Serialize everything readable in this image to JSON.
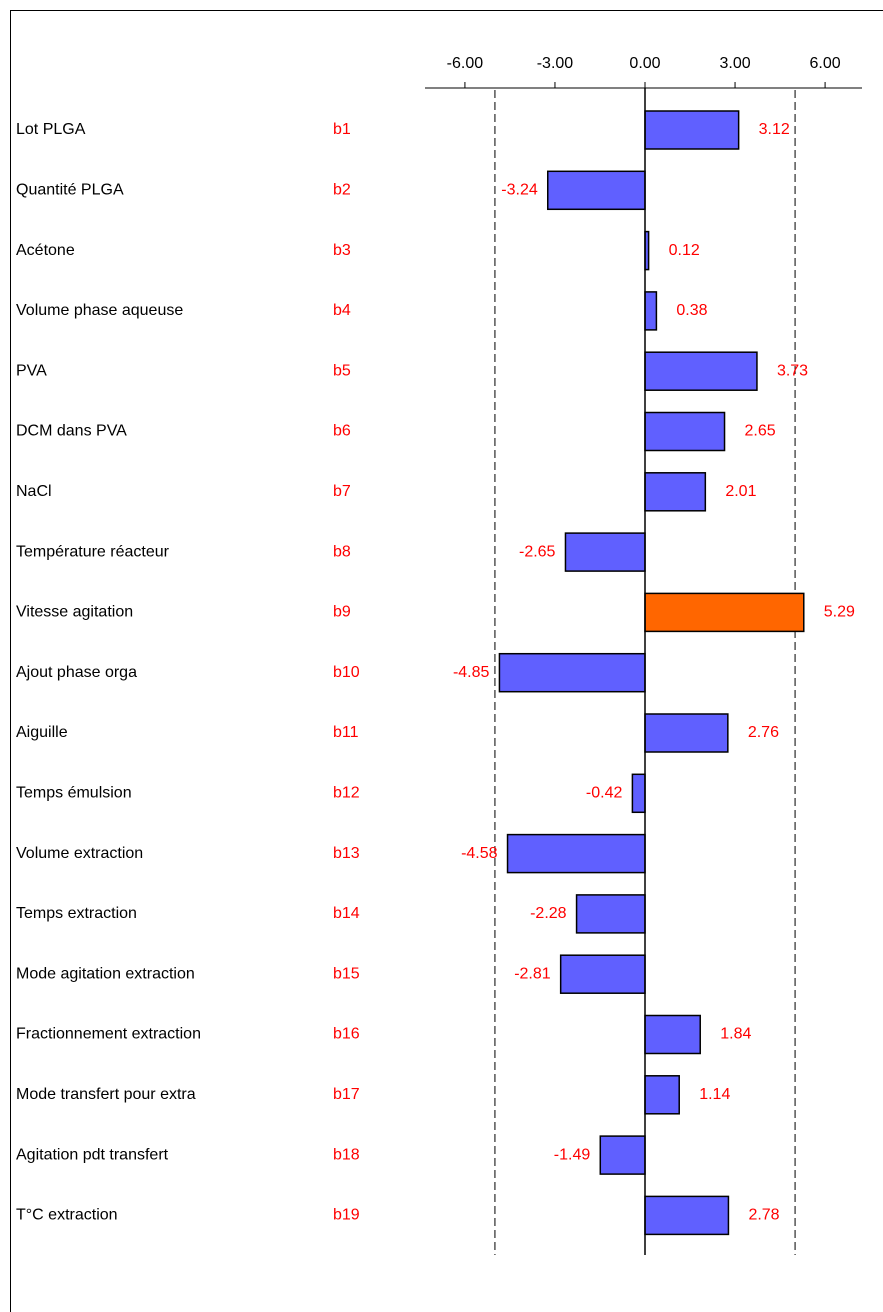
{
  "chart_data": {
    "type": "hbar",
    "names": [
      "Lot PLGA",
      "Quantité PLGA",
      "Acétone",
      "Volume phase aqueuse",
      "PVA",
      "DCM dans PVA",
      "NaCl",
      "Température réacteur",
      "Vitesse agitation",
      "Ajout phase orga",
      "Aiguille",
      "Temps émulsion",
      "Volume extraction",
      "Temps extraction",
      "Mode agitation extraction",
      "Fractionnement extraction",
      "Mode transfert pour extra",
      "Agitation pdt transfert",
      "T°C extraction"
    ],
    "categories": [
      "b1",
      "b2",
      "b3",
      "b4",
      "b5",
      "b6",
      "b7",
      "b8",
      "b9",
      "b10",
      "b11",
      "b12",
      "b13",
      "b14",
      "b15",
      "b16",
      "b17",
      "b18",
      "b19"
    ],
    "values": [
      3.12,
      -3.24,
      0.12,
      0.38,
      3.73,
      2.65,
      2.01,
      -2.65,
      5.29,
      -4.85,
      2.76,
      -0.42,
      -4.58,
      -2.28,
      -2.81,
      1.84,
      1.14,
      -1.49,
      2.78
    ],
    "color": "#6060ff",
    "highlight_color": "#ff6600",
    "label_color": "#ff0000",
    "threshold": 5.0,
    "xlim": [
      -7.33,
      7.23
    ],
    "xticks": [
      {
        "value": -6,
        "label": "-6.00"
      },
      {
        "value": -3,
        "label": "-3.00"
      },
      {
        "value": 0,
        "label": "0.00"
      },
      {
        "value": 3,
        "label": "3.00"
      },
      {
        "value": 6,
        "label": "6.00"
      }
    ]
  }
}
